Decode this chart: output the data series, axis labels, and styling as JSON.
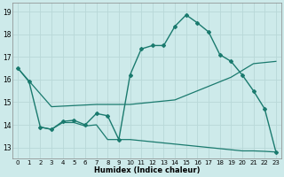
{
  "xlabel": "Humidex (Indice chaleur)",
  "xlim": [
    -0.5,
    23.5
  ],
  "ylim": [
    12.5,
    19.4
  ],
  "xticks": [
    0,
    1,
    2,
    3,
    4,
    5,
    6,
    7,
    8,
    9,
    10,
    11,
    12,
    13,
    14,
    15,
    16,
    17,
    18,
    19,
    20,
    21,
    22,
    23
  ],
  "yticks": [
    13,
    14,
    15,
    16,
    17,
    18,
    19
  ],
  "background_color": "#cdeaea",
  "grid_color": "#b8d8d8",
  "line_color": "#1a7a6e",
  "series": [
    {
      "x": [
        0,
        1,
        2,
        3,
        4,
        5,
        6,
        7,
        8,
        9,
        10,
        11,
        12,
        13,
        14,
        15,
        16,
        17,
        18,
        19,
        20,
        21,
        22,
        23
      ],
      "y": [
        16.5,
        15.9,
        13.9,
        13.8,
        14.15,
        14.2,
        14.0,
        14.5,
        14.4,
        13.35,
        16.2,
        17.35,
        17.5,
        17.5,
        18.35,
        18.85,
        18.5,
        18.1,
        17.1,
        16.8,
        16.2,
        15.5,
        14.7,
        12.8
      ],
      "marker": "D",
      "markersize": 2.0,
      "linewidth": 1.0
    },
    {
      "x": [
        0,
        3,
        7,
        10,
        14,
        19,
        21,
        23
      ],
      "y": [
        16.5,
        14.8,
        14.9,
        14.9,
        15.1,
        16.1,
        16.7,
        16.8
      ],
      "marker": null,
      "markersize": 0,
      "linewidth": 0.9
    },
    {
      "x": [
        2,
        3,
        4,
        5,
        6,
        7,
        8,
        9,
        10,
        11,
        12,
        13,
        14,
        15,
        16,
        17,
        18,
        19,
        20,
        21,
        22,
        23
      ],
      "y": [
        13.9,
        13.8,
        14.1,
        14.1,
        13.95,
        14.0,
        13.35,
        13.35,
        13.35,
        13.3,
        13.25,
        13.2,
        13.15,
        13.1,
        13.05,
        13.0,
        12.95,
        12.9,
        12.85,
        12.85,
        12.83,
        12.8
      ],
      "marker": null,
      "markersize": 0,
      "linewidth": 0.9
    }
  ]
}
